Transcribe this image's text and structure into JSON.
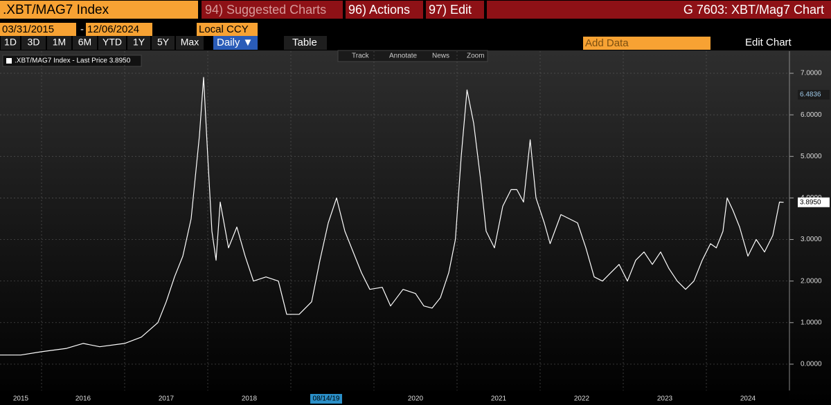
{
  "toolbar": {
    "security": ".XBT/MAG7 Index",
    "menus": [
      "94) Suggested Charts",
      "96) Actions",
      "97) Edit"
    ],
    "chart_name": "G 7603: XBT/Mag7 Chart",
    "start_date": "03/31/2015",
    "date_separator": "-",
    "end_date": "12/06/2024",
    "currency": "Local CCY",
    "periods": [
      "1D",
      "3D",
      "1M",
      "6M",
      "YTD",
      "1Y",
      "5Y",
      "Max"
    ],
    "frequency": "Daily ▼",
    "table": "Table",
    "add_data": "Add Data",
    "edit_chart": "Edit Chart",
    "tools": [
      "Track",
      "Annotate",
      "News",
      "Zoom"
    ]
  },
  "chart_data": {
    "type": "line",
    "cursor_date": "08/14/19",
    "series": [
      {
        "name": ".XBT/MAG7 Index - Last Price 3.8950",
        "color": "#ffffff",
        "x": [
          2015.5,
          2015.75,
          2016.0,
          2016.3,
          2016.5,
          2016.7,
          2017.0,
          2017.2,
          2017.4,
          2017.5,
          2017.6,
          2017.7,
          2017.8,
          2017.9,
          2017.95,
          2018.0,
          2018.05,
          2018.1,
          2018.15,
          2018.25,
          2018.35,
          2018.45,
          2018.55,
          2018.7,
          2018.85,
          2018.95,
          2019.1,
          2019.25,
          2019.35,
          2019.45,
          2019.55,
          2019.65,
          2019.75,
          2019.85,
          2019.95,
          2020.1,
          2020.2,
          2020.35,
          2020.5,
          2020.6,
          2020.7,
          2020.8,
          2020.9,
          2020.98,
          2021.05,
          2021.12,
          2021.2,
          2021.28,
          2021.35,
          2021.45,
          2021.55,
          2021.65,
          2021.72,
          2021.8,
          2021.88,
          2021.95,
          2022.05,
          2022.12,
          2022.25,
          2022.35,
          2022.45,
          2022.55,
          2022.65,
          2022.75,
          2022.85,
          2022.95,
          2023.05,
          2023.15,
          2023.25,
          2023.35,
          2023.45,
          2023.55,
          2023.65,
          2023.75,
          2023.85,
          2023.95,
          2024.05,
          2024.12,
          2024.2,
          2024.25,
          2024.32,
          2024.4,
          2024.5,
          2024.6,
          2024.7,
          2024.8,
          2024.88,
          2024.93
        ],
        "values": [
          0.22,
          0.22,
          0.3,
          0.38,
          0.5,
          0.42,
          0.5,
          0.65,
          1.0,
          1.5,
          2.1,
          2.6,
          3.5,
          5.5,
          6.9,
          5.0,
          3.2,
          2.5,
          3.9,
          2.8,
          3.3,
          2.6,
          2.0,
          2.1,
          2.0,
          1.2,
          1.2,
          1.5,
          2.5,
          3.4,
          4.0,
          3.2,
          2.7,
          2.2,
          1.8,
          1.85,
          1.4,
          1.8,
          1.7,
          1.4,
          1.35,
          1.6,
          2.2,
          3.0,
          5.0,
          6.6,
          5.8,
          4.5,
          3.2,
          2.8,
          3.8,
          4.2,
          4.2,
          3.9,
          5.4,
          4.0,
          3.4,
          2.9,
          3.6,
          3.5,
          3.4,
          2.8,
          2.1,
          2.0,
          2.2,
          2.4,
          2.0,
          2.5,
          2.7,
          2.4,
          2.7,
          2.3,
          2.0,
          1.8,
          2.0,
          2.5,
          2.9,
          2.8,
          3.2,
          4.0,
          3.7,
          3.3,
          2.6,
          3.0,
          2.7,
          3.1,
          3.9,
          3.895
        ]
      }
    ],
    "price_markers": [
      {
        "value": 6.4836,
        "label": "6.4836"
      },
      {
        "value": 3.895,
        "label": "3.8950"
      }
    ],
    "xlim": [
      2015.5,
      2025.0
    ],
    "xticks": [
      {
        "value": 2015.75,
        "label": "2015"
      },
      {
        "value": 2016.5,
        "label": "2016"
      },
      {
        "value": 2017.5,
        "label": "2017"
      },
      {
        "value": 2018.5,
        "label": "2018"
      },
      {
        "value": 2020.5,
        "label": "2020"
      },
      {
        "value": 2021.5,
        "label": "2021"
      },
      {
        "value": 2022.5,
        "label": "2022"
      },
      {
        "value": 2023.5,
        "label": "2023"
      },
      {
        "value": 2024.5,
        "label": "2024"
      }
    ],
    "xgrid": [
      2016,
      2017,
      2018,
      2019,
      2020,
      2021,
      2022,
      2023,
      2024
    ],
    "ylim": [
      -0.6,
      7.2
    ],
    "yticks": [
      {
        "value": 0,
        "label": "0.0000"
      },
      {
        "value": 1,
        "label": "1.0000"
      },
      {
        "value": 2,
        "label": "2.0000"
      },
      {
        "value": 3,
        "label": "3.0000"
      },
      {
        "value": 4,
        "label": "4.0000"
      },
      {
        "value": 5,
        "label": "5.0000"
      },
      {
        "value": 6,
        "label": "6.0000"
      },
      {
        "value": 7,
        "label": "7.0000"
      }
    ],
    "grid": true
  }
}
